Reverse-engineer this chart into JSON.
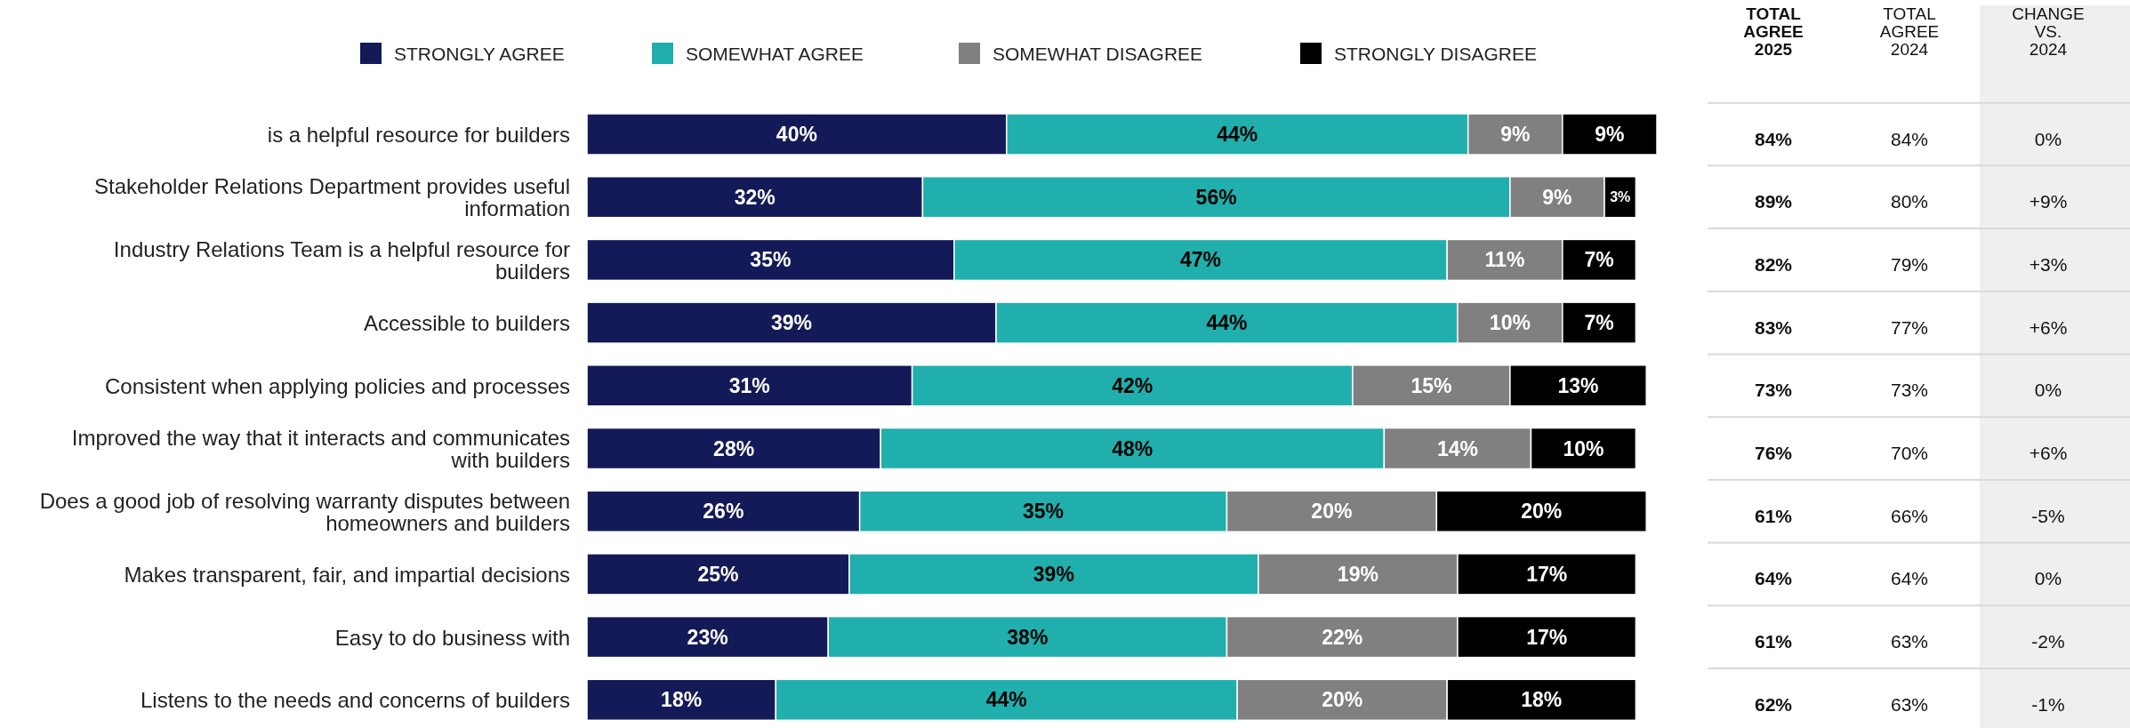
{
  "chart_data": [
    {
      "type": "bar",
      "orientation": "horizontal",
      "stacked": true,
      "legend": "top",
      "categories": [
        "is a helpful resource for builders",
        "Stakeholder Relations Department provides useful information",
        "Industry Relations Team is a helpful resource for builders",
        "Accessible to builders",
        "Consistent when applying policies and processes",
        "Improved the way that it interacts and communicates with builders",
        "Does a good job of resolving warranty disputes between homeowners and builders",
        "Makes transparent, fair, and impartial decisions",
        "Easy to do business with",
        "Listens to the needs and concerns of builders"
      ],
      "series": [
        {
          "name": "STRONGLY AGREE",
          "color": "#141a57",
          "values": [
            40,
            32,
            35,
            39,
            31,
            28,
            26,
            25,
            23,
            18
          ],
          "value_labels": [
            "40%",
            "32%",
            "35%",
            "39%",
            "31%",
            "28%",
            "26%",
            "25%",
            "23%",
            "18%"
          ]
        },
        {
          "name": "SOMEWHAT AGREE",
          "color": "#20afac",
          "values": [
            44,
            56,
            47,
            44,
            42,
            48,
            35,
            39,
            38,
            44
          ],
          "value_labels": [
            "44%",
            "56%",
            "47%",
            "44%",
            "42%",
            "48%",
            "35%",
            "39%",
            "38%",
            "44%"
          ]
        },
        {
          "name": "SOMEWHAT DISAGREE",
          "color": "#808080",
          "values": [
            9,
            9,
            11,
            10,
            15,
            14,
            20,
            19,
            22,
            20
          ],
          "value_labels": [
            "9%",
            "9%",
            "11%",
            "10%",
            "15%",
            "14%",
            "20%",
            "19%",
            "22%",
            "20%"
          ]
        },
        {
          "name": "STRONGLY DISAGREE",
          "color": "#000000",
          "values": [
            9,
            3,
            7,
            7,
            13,
            10,
            20,
            17,
            17,
            18
          ],
          "value_labels": [
            "9%",
            "3%",
            "7%",
            "7%",
            "13%",
            "10%",
            "20%",
            "17%",
            "17%",
            "18%"
          ]
        }
      ]
    },
    {
      "type": "other",
      "annotations": [
        "TOTAL AGREE 2025",
        "TOTAL AGREE 2024",
        "CHANGE VS. 2024",
        "84%",
        "84%",
        "0%",
        "89%",
        "80%",
        "+9%",
        "82%",
        "79%",
        "+3%",
        "83%",
        "77%",
        "+6%",
        "73%",
        "73%",
        "0%",
        "76%",
        "70%",
        "+6%",
        "61%",
        "66%",
        "-5%",
        "64%",
        "64%",
        "0%",
        "61%",
        "63%",
        "-2%",
        "62%",
        "63%",
        "-1%"
      ]
    }
  ]
}
